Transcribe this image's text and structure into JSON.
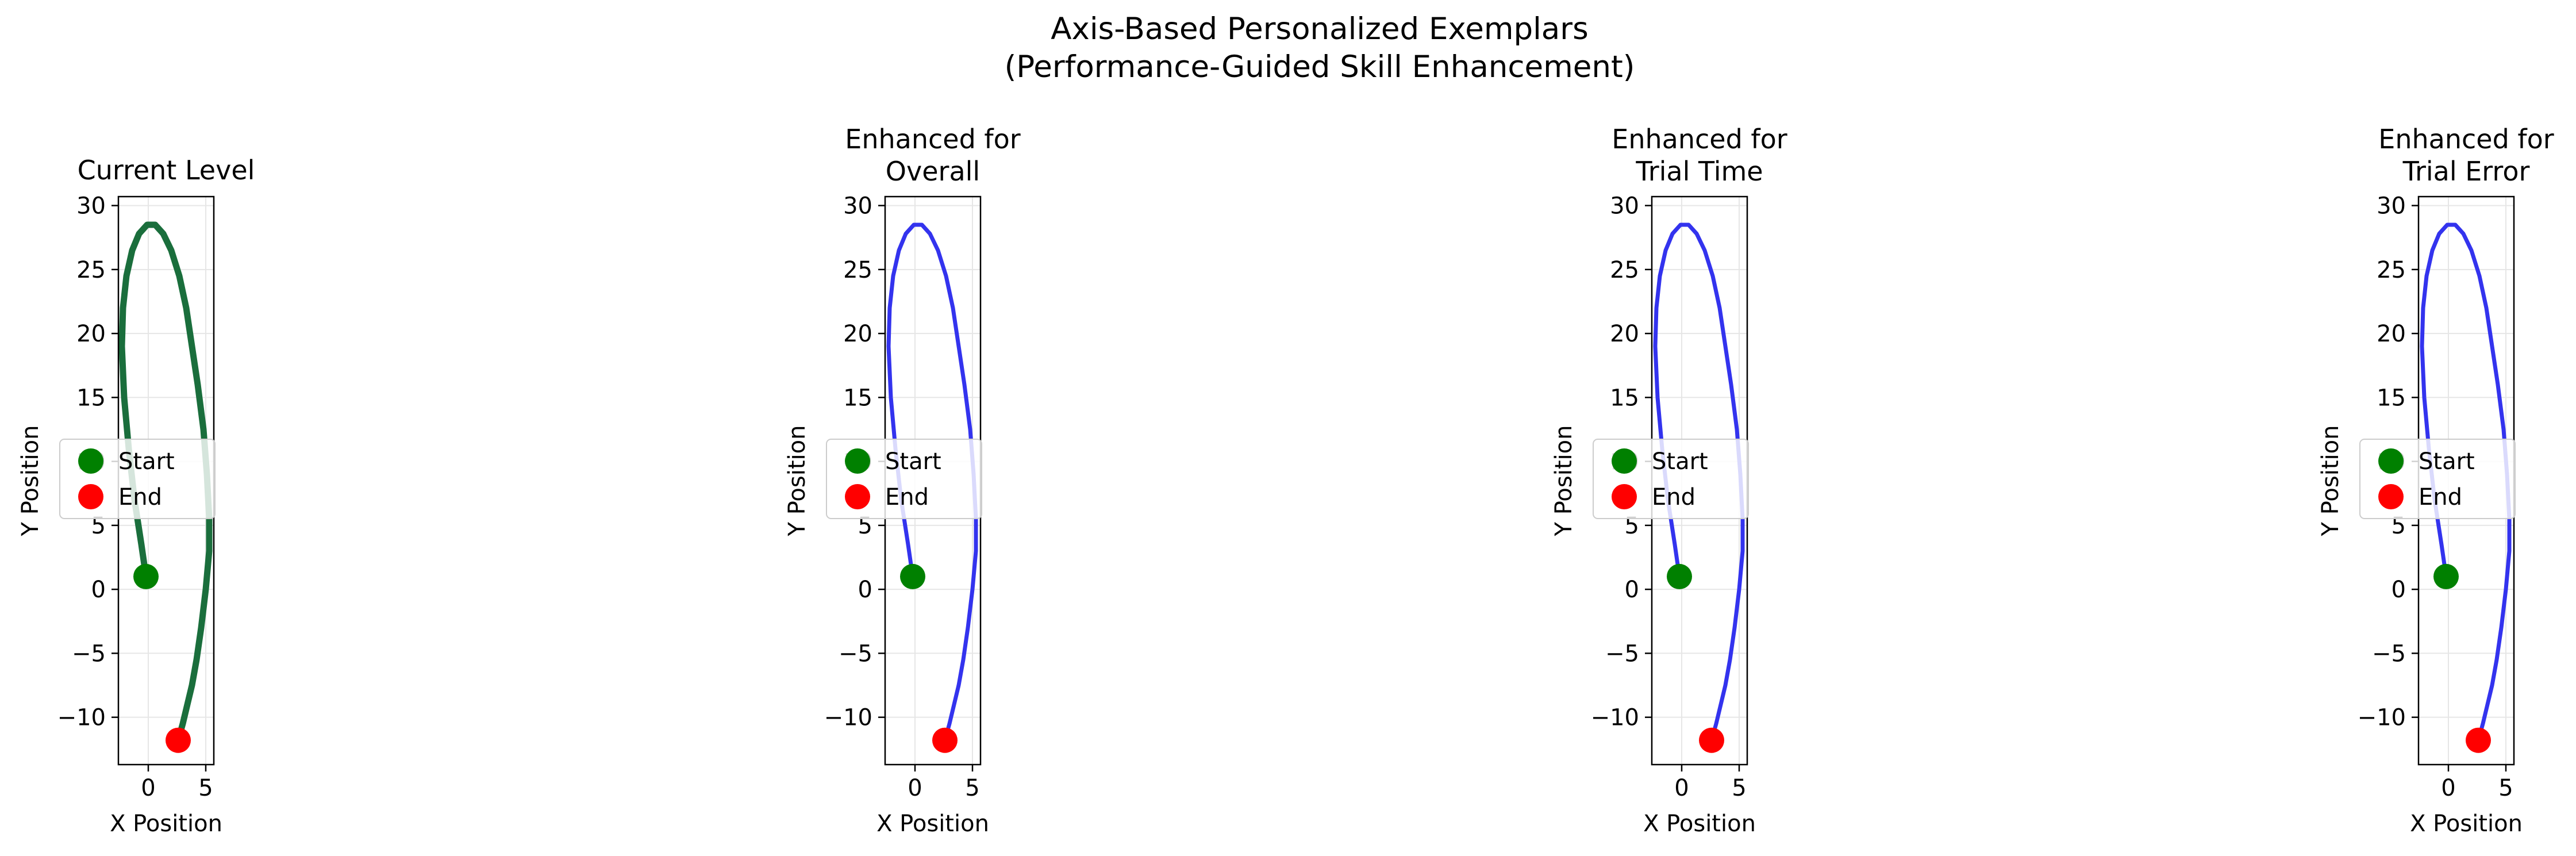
{
  "figure": {
    "title_line1": "Axis-Based Personalized Exemplars",
    "title_line2": "(Performance-Guided Skill Enhancement)"
  },
  "chart_data": [
    {
      "type": "line",
      "title": [
        "Current Level"
      ],
      "xlabel": "X Position",
      "ylabel": "Y Position",
      "xlim": [
        -2.6,
        5.7
      ],
      "ylim": [
        -13.7,
        30.7
      ],
      "xticks": [
        0,
        5
      ],
      "yticks": [
        -10,
        -5,
        0,
        5,
        10,
        15,
        20,
        25,
        30
      ],
      "grid": true,
      "legend": {
        "position": "center-left",
        "entries": [
          {
            "label": "Start",
            "color": "#008000"
          },
          {
            "label": "End",
            "color": "#ff0000"
          }
        ]
      },
      "series": [
        {
          "color": "#1a6e3c",
          "line_width": "thick",
          "x": [
            -0.2,
            -0.6,
            -1.2,
            -1.7,
            -2.1,
            -2.3,
            -2.2,
            -1.9,
            -1.4,
            -0.8,
            -0.1,
            0.6,
            1.3,
            2.0,
            2.7,
            3.3,
            3.8,
            4.3,
            4.8,
            5.1,
            5.3,
            5.3,
            5.0,
            4.6,
            4.2,
            3.8,
            3.4,
            3.0,
            2.6
          ],
          "y": [
            1.0,
            3.5,
            7.0,
            11.0,
            15.0,
            19.0,
            22.0,
            24.5,
            26.5,
            27.8,
            28.5,
            28.5,
            27.8,
            26.5,
            24.5,
            22.0,
            19.0,
            16.0,
            12.5,
            9.0,
            5.5,
            3.0,
            0.0,
            -3.0,
            -5.5,
            -7.5,
            -9.0,
            -10.5,
            -11.8
          ]
        }
      ],
      "start": {
        "x": -0.2,
        "y": 1.0
      },
      "end": {
        "x": 2.6,
        "y": -11.8
      }
    },
    {
      "type": "line",
      "title": [
        "Enhanced for",
        "Overall"
      ],
      "xlabel": "X Position",
      "ylabel": "Y Position",
      "xlim": [
        -2.6,
        5.7
      ],
      "ylim": [
        -13.7,
        30.7
      ],
      "xticks": [
        0,
        5
      ],
      "yticks": [
        -10,
        -5,
        0,
        5,
        10,
        15,
        20,
        25,
        30
      ],
      "grid": true,
      "legend": {
        "position": "center-left",
        "entries": [
          {
            "label": "Start",
            "color": "#008000"
          },
          {
            "label": "End",
            "color": "#ff0000"
          }
        ]
      },
      "series": [
        {
          "color": "#3333ee",
          "line_width": "normal",
          "x": [
            -0.2,
            -0.6,
            -1.2,
            -1.7,
            -2.1,
            -2.3,
            -2.2,
            -1.9,
            -1.4,
            -0.8,
            -0.1,
            0.6,
            1.3,
            2.0,
            2.7,
            3.3,
            3.8,
            4.3,
            4.8,
            5.1,
            5.3,
            5.3,
            5.0,
            4.6,
            4.2,
            3.8,
            3.4,
            3.0,
            2.6
          ],
          "y": [
            1.0,
            3.5,
            7.0,
            11.0,
            15.0,
            19.0,
            22.0,
            24.5,
            26.5,
            27.8,
            28.5,
            28.5,
            27.8,
            26.5,
            24.5,
            22.0,
            19.0,
            16.0,
            12.5,
            9.0,
            5.5,
            3.0,
            0.0,
            -3.0,
            -5.5,
            -7.5,
            -9.0,
            -10.5,
            -11.8
          ]
        }
      ],
      "start": {
        "x": -0.2,
        "y": 1.0
      },
      "end": {
        "x": 2.6,
        "y": -11.8
      }
    },
    {
      "type": "line",
      "title": [
        "Enhanced for",
        "Trial Time"
      ],
      "xlabel": "X Position",
      "ylabel": "Y Position",
      "xlim": [
        -2.6,
        5.7
      ],
      "ylim": [
        -13.7,
        30.7
      ],
      "xticks": [
        0,
        5
      ],
      "yticks": [
        -10,
        -5,
        0,
        5,
        10,
        15,
        20,
        25,
        30
      ],
      "grid": true,
      "legend": {
        "position": "center-left",
        "entries": [
          {
            "label": "Start",
            "color": "#008000"
          },
          {
            "label": "End",
            "color": "#ff0000"
          }
        ]
      },
      "series": [
        {
          "color": "#3333ee",
          "line_width": "normal",
          "x": [
            -0.2,
            -0.6,
            -1.2,
            -1.7,
            -2.1,
            -2.3,
            -2.2,
            -1.9,
            -1.4,
            -0.8,
            -0.1,
            0.6,
            1.3,
            2.0,
            2.7,
            3.3,
            3.8,
            4.3,
            4.8,
            5.1,
            5.3,
            5.3,
            5.0,
            4.6,
            4.2,
            3.8,
            3.4,
            3.0,
            2.6
          ],
          "y": [
            1.0,
            3.5,
            7.0,
            11.0,
            15.0,
            19.0,
            22.0,
            24.5,
            26.5,
            27.8,
            28.5,
            28.5,
            27.8,
            26.5,
            24.5,
            22.0,
            19.0,
            16.0,
            12.5,
            9.0,
            5.5,
            3.0,
            0.0,
            -3.0,
            -5.5,
            -7.5,
            -9.0,
            -10.5,
            -11.8
          ]
        }
      ],
      "start": {
        "x": -0.2,
        "y": 1.0
      },
      "end": {
        "x": 2.6,
        "y": -11.8
      }
    },
    {
      "type": "line",
      "title": [
        "Enhanced for",
        "Trial Error"
      ],
      "xlabel": "X Position",
      "ylabel": "Y Position",
      "xlim": [
        -2.6,
        5.7
      ],
      "ylim": [
        -13.7,
        30.7
      ],
      "xticks": [
        0,
        5
      ],
      "yticks": [
        -10,
        -5,
        0,
        5,
        10,
        15,
        20,
        25,
        30
      ],
      "grid": true,
      "legend": {
        "position": "center-left",
        "entries": [
          {
            "label": "Start",
            "color": "#008000"
          },
          {
            "label": "End",
            "color": "#ff0000"
          }
        ]
      },
      "series": [
        {
          "color": "#3333ee",
          "line_width": "normal",
          "x": [
            -0.2,
            -0.6,
            -1.2,
            -1.7,
            -2.1,
            -2.3,
            -2.2,
            -1.9,
            -1.4,
            -0.8,
            -0.1,
            0.6,
            1.3,
            2.0,
            2.7,
            3.3,
            3.8,
            4.3,
            4.8,
            5.1,
            5.3,
            5.3,
            5.0,
            4.6,
            4.2,
            3.8,
            3.4,
            3.0,
            2.6
          ],
          "y": [
            1.0,
            3.5,
            7.0,
            11.0,
            15.0,
            19.0,
            22.0,
            24.5,
            26.5,
            27.8,
            28.5,
            28.5,
            27.8,
            26.5,
            24.5,
            22.0,
            19.0,
            16.0,
            12.5,
            9.0,
            5.5,
            3.0,
            0.0,
            -3.0,
            -5.5,
            -7.5,
            -9.0,
            -10.5,
            -11.8
          ]
        }
      ],
      "start": {
        "x": -0.2,
        "y": 1.0
      },
      "end": {
        "x": 2.6,
        "y": -11.8
      }
    }
  ]
}
